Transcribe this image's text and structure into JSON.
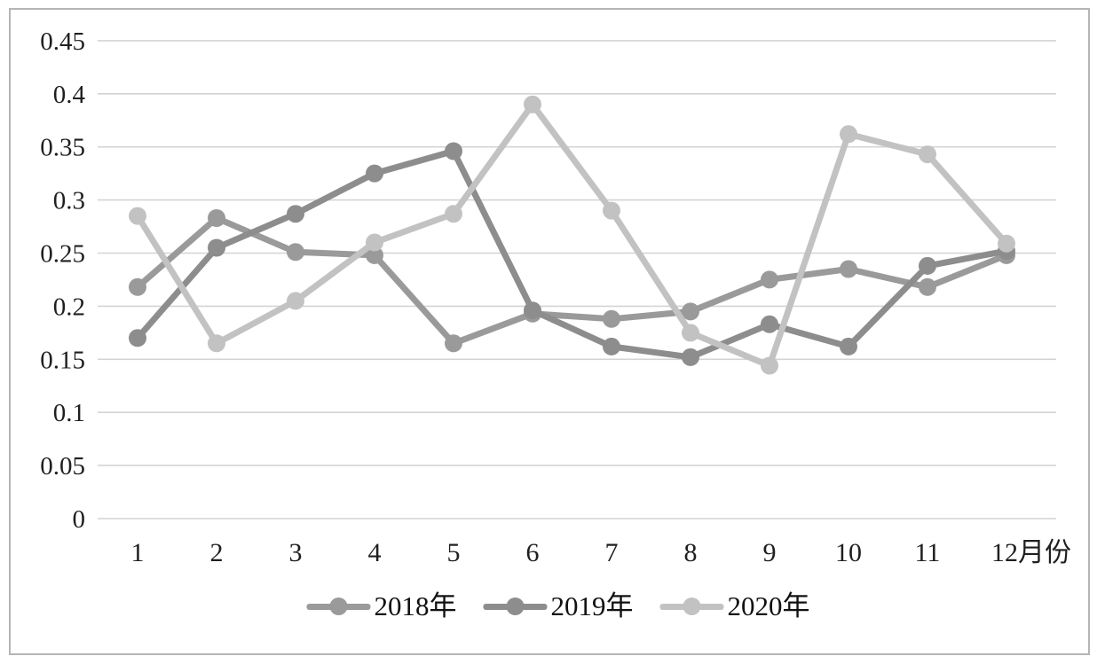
{
  "chart_data": {
    "type": "line",
    "title": "",
    "xlabel": "月份",
    "ylabel": "",
    "categories": [
      1,
      2,
      3,
      4,
      5,
      6,
      7,
      8,
      9,
      10,
      11,
      12
    ],
    "x_tick_labels": [
      "1",
      "2",
      "3",
      "4",
      "5",
      "6",
      "7",
      "8",
      "9",
      "10",
      "11",
      "12月份"
    ],
    "ylim": [
      0,
      0.45
    ],
    "y_ticks": [
      0,
      0.05,
      0.1,
      0.15,
      0.2,
      0.25,
      0.3,
      0.35,
      0.4,
      0.45
    ],
    "y_tick_labels": [
      "0",
      "0.05",
      "0.1",
      "0.15",
      "0.2",
      "0.25",
      "0.3",
      "0.35",
      "0.4",
      "0.45"
    ],
    "grid": true,
    "legend_position": "bottom",
    "gridline_color": "#d4d4d4",
    "label_color": "#1f1f1f",
    "marker_style": "circle",
    "series": [
      {
        "name": "2018年",
        "color": "#9a9a9a",
        "values": [
          0.218,
          0.283,
          0.251,
          0.248,
          0.165,
          0.193,
          0.188,
          0.195,
          0.225,
          0.235,
          0.218,
          0.248
        ]
      },
      {
        "name": "2019年",
        "color": "#8d8d8d",
        "values": [
          0.17,
          0.255,
          0.287,
          0.325,
          0.346,
          0.196,
          0.162,
          0.152,
          0.183,
          0.162,
          0.238,
          0.252
        ]
      },
      {
        "name": "2020年",
        "color": "#c2c2c2",
        "values": [
          0.285,
          0.165,
          0.205,
          0.26,
          0.287,
          0.39,
          0.29,
          0.175,
          0.144,
          0.362,
          0.343,
          0.259
        ]
      }
    ]
  },
  "frame": {
    "background": "#ffffff",
    "border_color": "#b5b5b5"
  }
}
